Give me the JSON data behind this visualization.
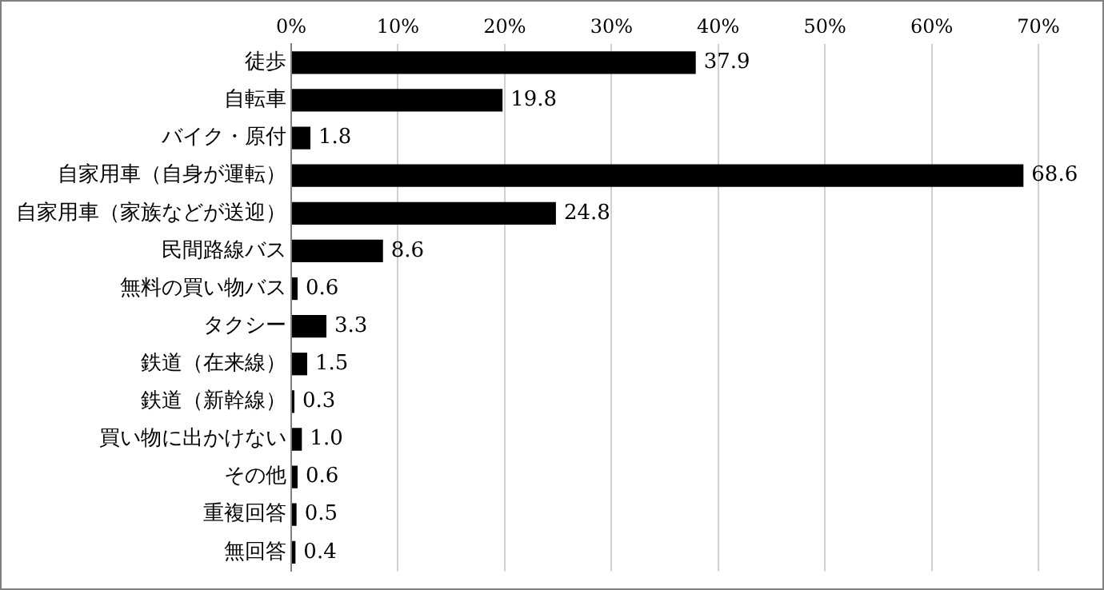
{
  "chart_data": {
    "type": "bar",
    "orientation": "horizontal",
    "categories": [
      "徒歩",
      "自転車",
      "バイク・原付",
      "自家用車（自身が運転）",
      "自家用車（家族などが送迎）",
      "民間路線バス",
      "無料の買い物バス",
      "タクシー",
      "鉄道（在来線）",
      "鉄道（新幹線）",
      "買い物に出かけない",
      "その他",
      "重複回答",
      "無回答"
    ],
    "values": [
      37.9,
      19.8,
      1.8,
      68.6,
      24.8,
      8.6,
      0.6,
      3.3,
      1.5,
      0.3,
      1.0,
      0.6,
      0.5,
      0.4
    ],
    "value_labels": [
      "37.9",
      "19.8",
      "1.8",
      "68.6",
      "24.8",
      "8.6",
      "0.6",
      "3.3",
      "1.5",
      "0.3",
      "1.0",
      "0.6",
      "0.5",
      "0.4"
    ],
    "color": "#000000",
    "xlim": [
      0,
      70
    ],
    "xticks": [
      {
        "value": 0,
        "label": "0%"
      },
      {
        "value": 10,
        "label": "10%"
      },
      {
        "value": 20,
        "label": "20%"
      },
      {
        "value": 30,
        "label": "30%"
      },
      {
        "value": 40,
        "label": "40%"
      },
      {
        "value": 50,
        "label": "50%"
      },
      {
        "value": 60,
        "label": "60%"
      },
      {
        "value": 70,
        "label": "70%"
      }
    ],
    "grid": "x",
    "legend": false
  }
}
